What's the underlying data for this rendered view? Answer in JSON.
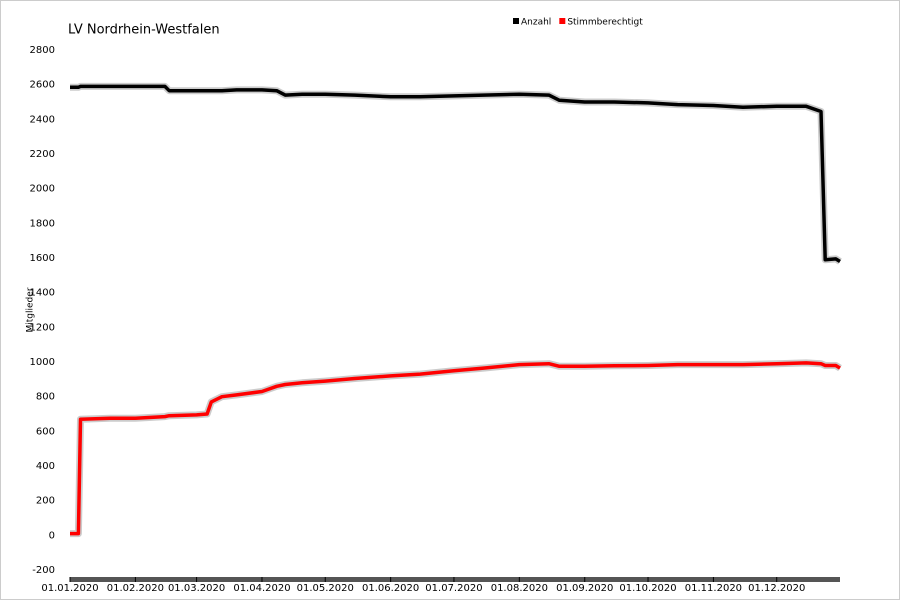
{
  "chart_data": {
    "type": "line",
    "title": "LV Nordrhein-Westfalen",
    "y_label": "Mitglieder",
    "x": [
      "2020-01-01",
      "2020-01-05",
      "2020-01-06",
      "2020-01-20",
      "2020-02-01",
      "2020-02-15",
      "2020-02-17",
      "2020-03-01",
      "2020-03-06",
      "2020-03-08",
      "2020-03-13",
      "2020-03-20",
      "2020-04-01",
      "2020-04-08",
      "2020-04-12",
      "2020-04-20",
      "2020-05-01",
      "2020-05-15",
      "2020-06-01",
      "2020-06-15",
      "2020-07-01",
      "2020-07-15",
      "2020-08-01",
      "2020-08-15",
      "2020-08-20",
      "2020-09-01",
      "2020-09-15",
      "2020-10-01",
      "2020-10-15",
      "2020-11-01",
      "2020-11-15",
      "2020-12-01",
      "2020-12-15",
      "2020-12-22",
      "2020-12-24",
      "2020-12-29",
      "2020-12-31"
    ],
    "series": [
      {
        "name": "Anzahl",
        "color": "#000000",
        "values": [
          2585,
          2585,
          2590,
          2590,
          2590,
          2590,
          2565,
          2565,
          2565,
          2565,
          2565,
          2570,
          2570,
          2565,
          2540,
          2545,
          2545,
          2540,
          2530,
          2530,
          2535,
          2540,
          2545,
          2540,
          2510,
          2500,
          2500,
          2495,
          2485,
          2480,
          2470,
          2475,
          2475,
          2445,
          1590,
          1595,
          1580
        ]
      },
      {
        "name": "Stimmberechtigt",
        "color": "#ff0000",
        "values": [
          10,
          10,
          670,
          675,
          675,
          685,
          690,
          695,
          700,
          770,
          800,
          810,
          830,
          860,
          870,
          880,
          890,
          905,
          920,
          930,
          950,
          965,
          985,
          990,
          975,
          975,
          978,
          980,
          985,
          985,
          985,
          990,
          995,
          990,
          980,
          980,
          965
        ]
      }
    ],
    "xlim": [
      "2020-01-01",
      "2020-12-31"
    ],
    "xticks": [
      {
        "value": "2020-01-01",
        "label": "01.01.2020"
      },
      {
        "value": "2020-02-01",
        "label": "01.02.2020"
      },
      {
        "value": "2020-03-01",
        "label": "01.03.2020"
      },
      {
        "value": "2020-04-01",
        "label": "01.04.2020"
      },
      {
        "value": "2020-05-01",
        "label": "01.05.2020"
      },
      {
        "value": "2020-06-01",
        "label": "01.06.2020"
      },
      {
        "value": "2020-07-01",
        "label": "01.07.2020"
      },
      {
        "value": "2020-08-01",
        "label": "01.08.2020"
      },
      {
        "value": "2020-09-01",
        "label": "01.09.2020"
      },
      {
        "value": "2020-10-01",
        "label": "01.10.2020"
      },
      {
        "value": "2020-11-01",
        "label": "01.11.2020"
      },
      {
        "value": "2020-12-01",
        "label": "01.12.2020"
      }
    ],
    "ylim": [
      -200,
      2800
    ],
    "yticks": [
      -200,
      0,
      200,
      400,
      600,
      800,
      1000,
      1200,
      1400,
      1600,
      1800,
      2000,
      2200,
      2400,
      2600,
      2800
    ],
    "legend": "top"
  }
}
